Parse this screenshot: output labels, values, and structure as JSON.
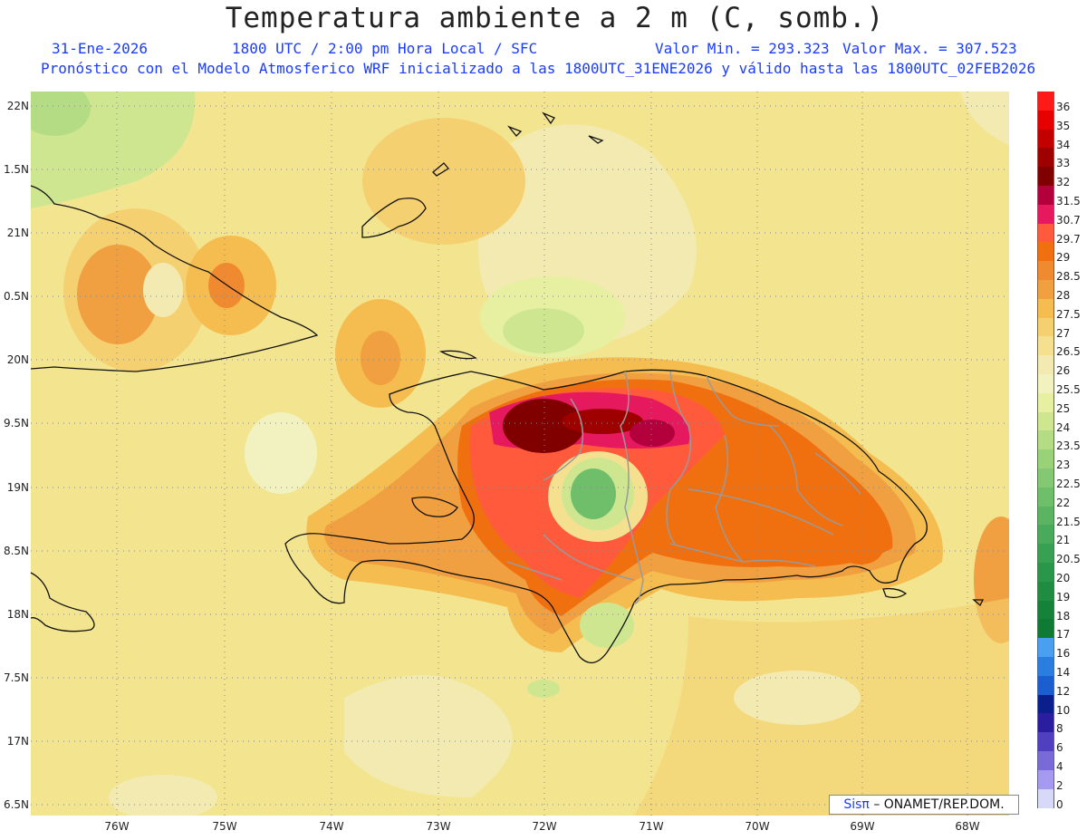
{
  "header": {
    "title": "Temperatura ambiente a 2 m (C, somb.)",
    "date": "31-Ene-2026",
    "time": "1800 UTC / 2:00 pm Hora Local / SFC",
    "min": "Valor Min. = 293.323",
    "max": "Valor Max. = 307.523",
    "forecast": "Pronóstico con el Modelo Atmosferico WRF inicializado a las 1800UTC_31ENE2026 y válido hasta las  1800UTC_02FEB2026"
  },
  "lat_labels": [
    "22N",
    "1.5N",
    "21N",
    "0.5N",
    "20N",
    "9.5N",
    "19N",
    "8.5N",
    "18N",
    "7.5N",
    "17N",
    "6.5N"
  ],
  "lon_labels": [
    "76W",
    "75W",
    "74W",
    "73W",
    "72W",
    "71W",
    "70W",
    "69W",
    "68W"
  ],
  "colorbar": [
    {
      "label": "36",
      "color": "#ff1a1a"
    },
    {
      "label": "35",
      "color": "#e60000"
    },
    {
      "label": "34",
      "color": "#c20000"
    },
    {
      "label": "33",
      "color": "#9e0000"
    },
    {
      "label": "32",
      "color": "#800000"
    },
    {
      "label": "31.5",
      "color": "#b3003c"
    },
    {
      "label": "30.7",
      "color": "#e6195e"
    },
    {
      "label": "29.7",
      "color": "#ff5a3c"
    },
    {
      "label": "29",
      "color": "#f07010"
    },
    {
      "label": "28.5",
      "color": "#f08a30"
    },
    {
      "label": "28",
      "color": "#f0a040"
    },
    {
      "label": "27.5",
      "color": "#f5bd50"
    },
    {
      "label": "27",
      "color": "#f5d070"
    },
    {
      "label": "26.5",
      "color": "#f5e090"
    },
    {
      "label": "26",
      "color": "#f2eab0"
    },
    {
      "label": "25.5",
      "color": "#f2f2c0"
    },
    {
      "label": "25",
      "color": "#e6f0a0"
    },
    {
      "label": "24",
      "color": "#cfe690"
    },
    {
      "label": "23.5",
      "color": "#b3dc85"
    },
    {
      "label": "23",
      "color": "#9ad27a"
    },
    {
      "label": "22.5",
      "color": "#85c873"
    },
    {
      "label": "22",
      "color": "#6fbe6a"
    },
    {
      "label": "21.5",
      "color": "#5ab462"
    },
    {
      "label": "21",
      "color": "#48aa5a"
    },
    {
      "label": "20.5",
      "color": "#38a052"
    },
    {
      "label": "20",
      "color": "#2a964a"
    },
    {
      "label": "19",
      "color": "#1f8c42"
    },
    {
      "label": "18",
      "color": "#15823a"
    },
    {
      "label": "17",
      "color": "#0f7a34"
    },
    {
      "label": "16",
      "color": "#4aa0f0"
    },
    {
      "label": "14",
      "color": "#2a7ee0"
    },
    {
      "label": "12",
      "color": "#1a5ed0"
    },
    {
      "label": "10",
      "color": "#0a1e8c"
    },
    {
      "label": "8",
      "color": "#2a1e9e"
    },
    {
      "label": "6",
      "color": "#5040c0"
    },
    {
      "label": "4",
      "color": "#7a6ad8"
    },
    {
      "label": "2",
      "color": "#a59af0"
    },
    {
      "label": "0",
      "color": "#d8d8f8"
    }
  ],
  "credit": {
    "brand": "Sisπ",
    "text": "– ONAMET/REP.DOM."
  }
}
